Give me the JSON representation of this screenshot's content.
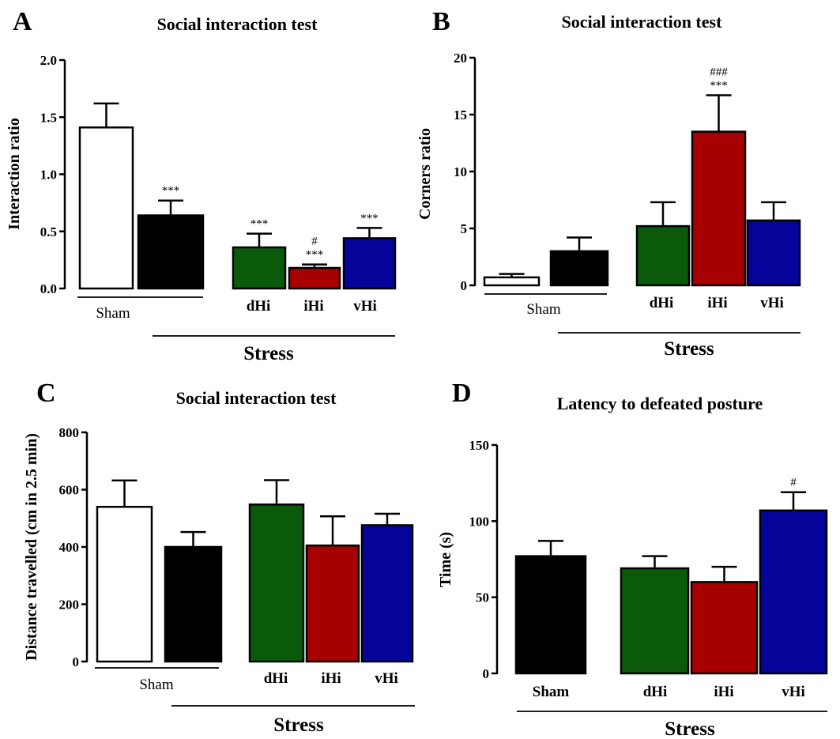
{
  "figure": {
    "background": "#ffffff"
  },
  "chart_data": [
    {
      "id": "A",
      "type": "bar",
      "panel_letter": "A",
      "title": "Social interaction test",
      "ylabel": "Interaction ratio",
      "ylim": [
        0,
        2.0
      ],
      "yticks": [
        0,
        0.5,
        1.0,
        1.5,
        2.0
      ],
      "ytick_labels": [
        "0.0",
        "0.5",
        "1.0",
        "1.5",
        "2.0"
      ],
      "bars": [
        {
          "value": 1.41,
          "error": 0.21,
          "color": "#ffffff",
          "annotation": []
        },
        {
          "value": 0.64,
          "error": 0.13,
          "color": "#000000",
          "annotation": [
            "***"
          ]
        },
        {
          "value": 0.36,
          "error": 0.12,
          "color": "#0b5a0b",
          "annotation": [
            "***"
          ]
        },
        {
          "value": 0.18,
          "error": 0.03,
          "color": "#a80000",
          "annotation": [
            "#",
            "***"
          ]
        },
        {
          "value": 0.44,
          "error": 0.09,
          "color": "#04049a",
          "annotation": [
            "***"
          ]
        }
      ],
      "category_labels": [
        "dHi",
        "iHi",
        "vHi"
      ],
      "sham_label": "Sham",
      "stress_label": "Stress"
    },
    {
      "id": "B",
      "type": "bar",
      "panel_letter": "B",
      "title": "Social interaction test",
      "ylabel": "Corners ratio",
      "ylim": [
        0,
        20
      ],
      "yticks": [
        0,
        5,
        10,
        15,
        20
      ],
      "ytick_labels": [
        "0",
        "5",
        "10",
        "15",
        "20"
      ],
      "bars": [
        {
          "value": 0.7,
          "error": 0.3,
          "color": "#ffffff",
          "annotation": []
        },
        {
          "value": 3.0,
          "error": 1.2,
          "color": "#000000",
          "annotation": []
        },
        {
          "value": 5.2,
          "error": 2.1,
          "color": "#0b5a0b",
          "annotation": []
        },
        {
          "value": 13.5,
          "error": 3.2,
          "color": "#a80000",
          "annotation": [
            "###",
            "***"
          ]
        },
        {
          "value": 5.7,
          "error": 1.6,
          "color": "#04049a",
          "annotation": []
        }
      ],
      "category_labels": [
        "dHi",
        "iHi",
        "vHi"
      ],
      "sham_label": "Sham",
      "stress_label": "Stress"
    },
    {
      "id": "C",
      "type": "bar",
      "panel_letter": "C",
      "title": "Social interaction test",
      "ylabel": "Distance travelled (cm in 2.5 min)",
      "ylim": [
        0,
        800
      ],
      "yticks": [
        0,
        200,
        400,
        600,
        800
      ],
      "ytick_labels": [
        "0",
        "200",
        "400",
        "600",
        "800"
      ],
      "bars": [
        {
          "value": 540,
          "error": 92,
          "color": "#ffffff",
          "annotation": []
        },
        {
          "value": 400,
          "error": 52,
          "color": "#000000",
          "annotation": []
        },
        {
          "value": 548,
          "error": 85,
          "color": "#0b5a0b",
          "annotation": []
        },
        {
          "value": 405,
          "error": 102,
          "color": "#a80000",
          "annotation": []
        },
        {
          "value": 476,
          "error": 40,
          "color": "#04049a",
          "annotation": []
        }
      ],
      "category_labels": [
        "dHi",
        "iHi",
        "vHi"
      ],
      "sham_label": "Sham",
      "stress_label": "Stress"
    },
    {
      "id": "D",
      "type": "bar",
      "panel_letter": "D",
      "title": "Latency to defeated posture",
      "ylabel": "Time (s)",
      "ylim": [
        0,
        150
      ],
      "yticks": [
        0,
        50,
        100,
        150
      ],
      "ytick_labels": [
        "0",
        "50",
        "100",
        "150"
      ],
      "bars": [
        {
          "value": 77,
          "error": 10,
          "color": "#000000",
          "annotation": []
        },
        {
          "value": 69,
          "error": 8,
          "color": "#0b5a0b",
          "annotation": []
        },
        {
          "value": 60,
          "error": 10,
          "color": "#a80000",
          "annotation": []
        },
        {
          "value": 107,
          "error": 12,
          "color": "#04049a",
          "annotation": [
            "#"
          ]
        }
      ],
      "category_labels": [
        "Sham",
        "dHi",
        "iHi",
        "vHi"
      ],
      "stress_label": "Stress"
    }
  ]
}
